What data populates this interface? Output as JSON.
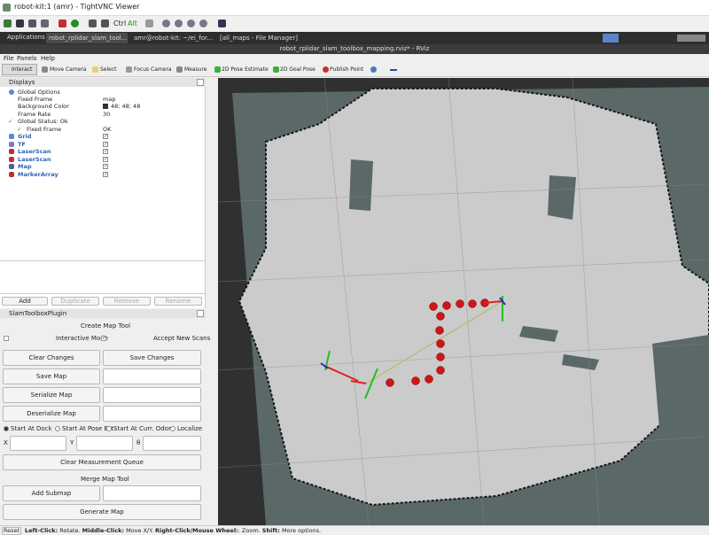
{
  "window": {
    "title": "robot-kit:1 (amr) - TightVNC Viewer"
  },
  "vnc_toolbar": {
    "ctrl": "Ctrl",
    "alt": "Alt"
  },
  "taskbar": {
    "applications": "Applications :",
    "tasks": [
      "robot_rplidar_slam_tool...",
      "amr@robot-kit: ~/ei_for...",
      "[all_maps - File Manager]"
    ]
  },
  "rviz": {
    "title": "robot_rplidar_slam_toolbox_mapping.rviz* - RViz",
    "menu": [
      "File",
      "Panels",
      "Help"
    ],
    "tools": [
      "Interact",
      "Move Camera",
      "Select",
      "Focus Camera",
      "Measure",
      "2D Pose Estimate",
      "2D Goal Pose",
      "Publish Point"
    ]
  },
  "displays": {
    "header": "Displays",
    "rows": [
      {
        "label": "Global Options"
      },
      {
        "label": "Fixed Frame",
        "value": "map"
      },
      {
        "label": "Background Color",
        "value": "48; 48; 48"
      },
      {
        "label": "Frame Rate",
        "value": "30"
      },
      {
        "label": "Global Status: Ok"
      },
      {
        "label": "Fixed Frame",
        "value": "OK"
      },
      {
        "label": "Grid"
      },
      {
        "label": "TF"
      },
      {
        "label": "LaserScan"
      },
      {
        "label": "LaserScan"
      },
      {
        "label": "Map"
      },
      {
        "label": "MarkerArray"
      }
    ],
    "buttons": [
      "Add",
      "Duplicate",
      "Remove",
      "Rename"
    ]
  },
  "slam_toolbox": {
    "header": "SlamToolboxPlugin",
    "create_map_tool": "Create Map Tool",
    "interactive_mode": "Interactive Mode",
    "accept_new_scans": "Accept New Scans",
    "clear_changes": "Clear Changes",
    "save_changes": "Save Changes",
    "save_map": "Save Map",
    "serialize_map": "Serialize Map",
    "deserialize_map": "Deserialize Map",
    "start_options": [
      "Start At Dock",
      "Start At Pose Est.",
      "Start At Curr. Odom",
      "Localize"
    ],
    "pose_fields": [
      "X",
      "Y",
      "θ"
    ],
    "clear_measurement_queue": "Clear Measurement Queue",
    "merge_map_tool": "Merge Map Tool",
    "add_submap": "Add Submap",
    "generate_map": "Generate Map"
  },
  "status_bar": {
    "reset": "Reset",
    "hints": [
      {
        "key": "Left-Click:",
        "action": " Rotate. "
      },
      {
        "key": "Middle-Click:",
        "action": " Move X/Y. "
      },
      {
        "key": "Right-Click/Mouse Wheel:",
        "action": ": Zoom. "
      },
      {
        "key": "Shift:",
        "action": " More options."
      }
    ]
  }
}
